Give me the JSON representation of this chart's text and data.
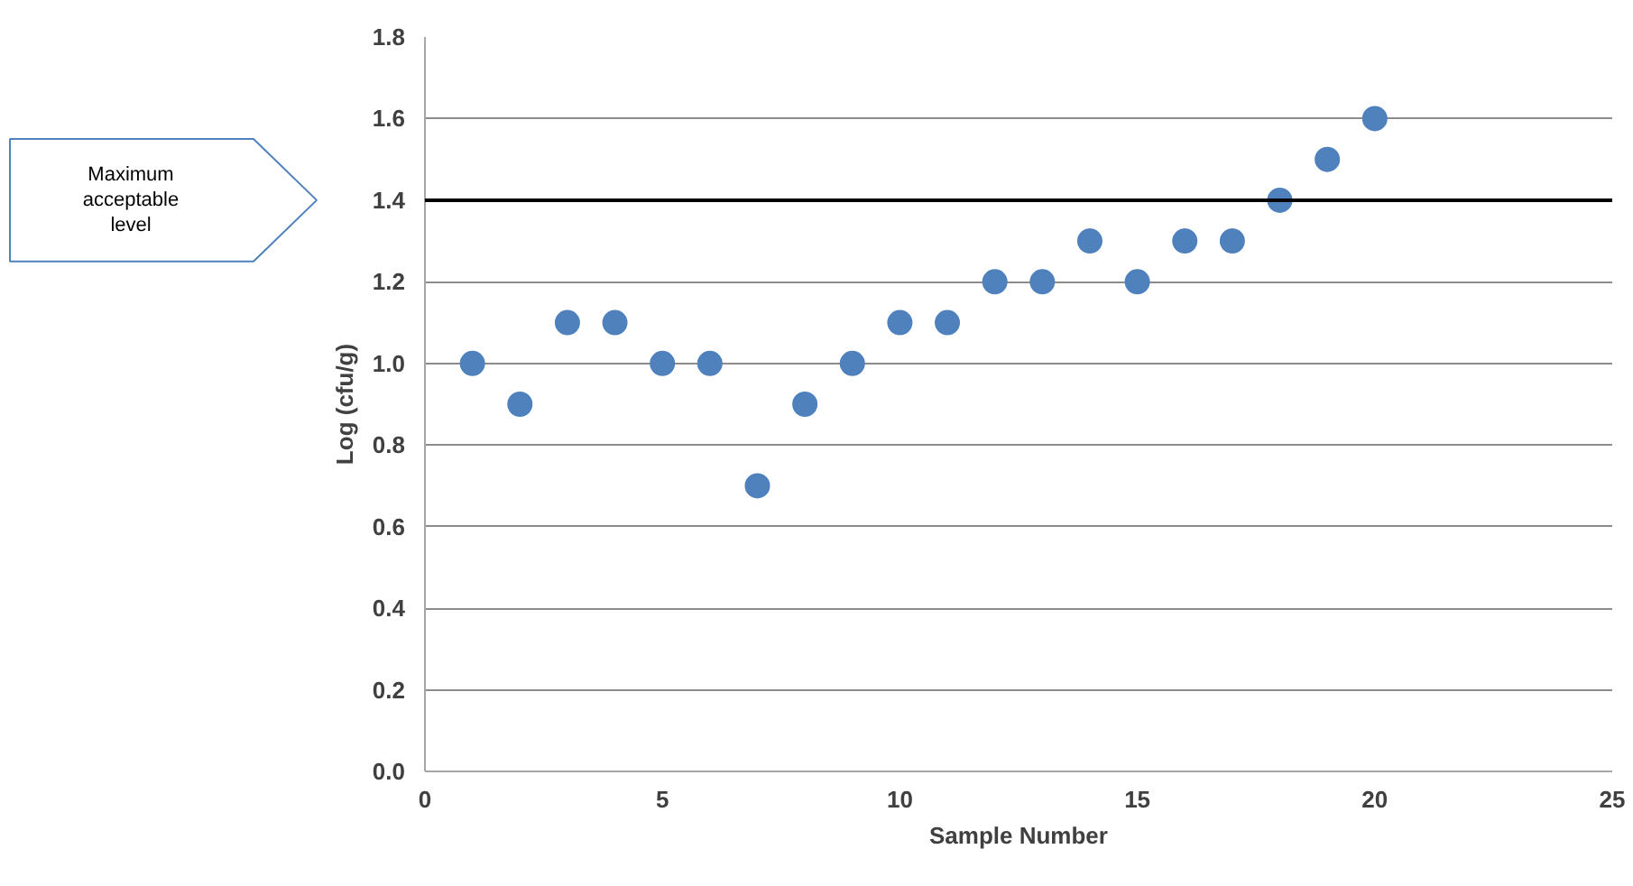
{
  "chart_data": {
    "type": "scatter",
    "xlabel": "Sample Number",
    "ylabel": "Log (cfu/g)",
    "x": [
      1,
      2,
      3,
      4,
      5,
      6,
      7,
      8,
      9,
      10,
      11,
      12,
      13,
      14,
      15,
      16,
      17,
      18,
      19,
      20
    ],
    "series": [
      {
        "color": "#4f81bd",
        "values": [
          1.0,
          0.9,
          1.1,
          1.1,
          1.0,
          1.0,
          0.7,
          0.9,
          1.0,
          1.1,
          1.1,
          1.2,
          1.2,
          1.3,
          1.2,
          1.3,
          1.3,
          1.4,
          1.5,
          1.6
        ]
      }
    ],
    "xlim": [
      0,
      25
    ],
    "xticks": [
      0,
      5,
      10,
      15,
      20,
      25
    ],
    "ylim": [
      0,
      1.8
    ],
    "yticks": [
      {
        "value": 0,
        "label": "0.0"
      },
      {
        "value": 0.2,
        "label": "0.2"
      },
      {
        "value": 0.4,
        "label": "0.4"
      },
      {
        "value": 0.6,
        "label": "0.6"
      },
      {
        "value": 0.8,
        "label": "0.8"
      },
      {
        "value": 1.0,
        "label": "1.0"
      },
      {
        "value": 1.2,
        "label": "1.2"
      },
      {
        "value": 1.4,
        "label": "1.4"
      },
      {
        "value": 1.6,
        "label": "1.6"
      },
      {
        "value": 1.8,
        "label": "1.8"
      }
    ],
    "ref_lines": [
      {
        "axis": "y",
        "value": 1.4,
        "label": "Maximum acceptable level",
        "color": "#000000",
        "line_style": "solid"
      }
    ],
    "grid": "y",
    "marker": "circle"
  }
}
